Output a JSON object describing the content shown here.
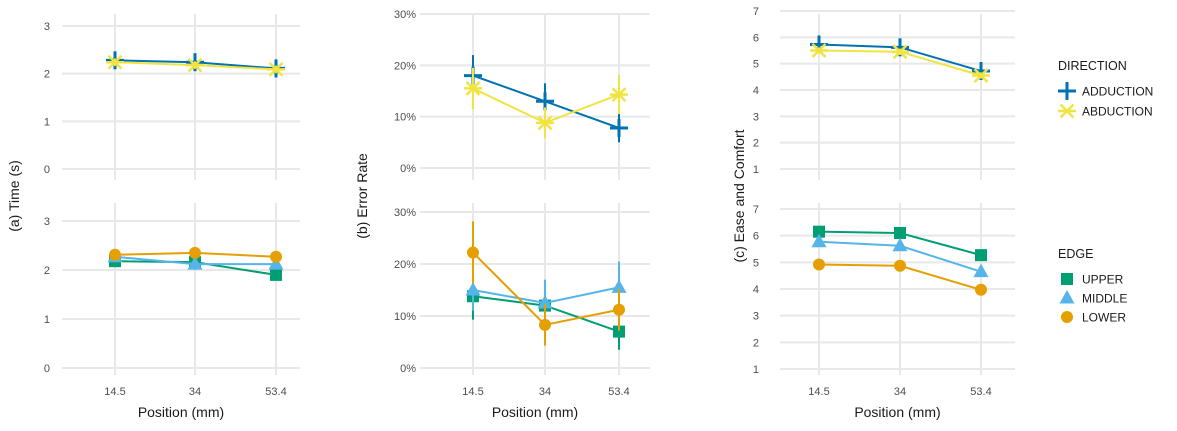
{
  "colors": {
    "adduction": "#0072B2",
    "abduction": "#F0E442",
    "upper": "#009E73",
    "middle": "#56B4E9",
    "lower": "#E69F00",
    "grid": "#e8e8e8"
  },
  "legends": [
    {
      "title": "DIRECTION",
      "entries": [
        {
          "label": "ADDUCTION",
          "color": "#0072B2",
          "marker": "plus"
        },
        {
          "label": "ABDUCTION",
          "color": "#F0E442",
          "marker": "star"
        }
      ]
    },
    {
      "title": "EDGE",
      "entries": [
        {
          "label": "UPPER",
          "color": "#009E73",
          "marker": "square"
        },
        {
          "label": "MIDDLE",
          "color": "#56B4E9",
          "marker": "triangle"
        },
        {
          "label": "LOWER",
          "color": "#E69F00",
          "marker": "circle"
        }
      ]
    }
  ],
  "chart_data": [
    {
      "type": "line",
      "ylabel": "(a) Time (s)",
      "xlabel": "Position (mm)",
      "x": [
        "14.5",
        "34",
        "53.4"
      ],
      "panels": [
        {
          "facet": "DIRECTION",
          "ylim": [
            0,
            3.3
          ],
          "yticks": [
            0,
            1,
            2,
            3
          ],
          "ytick_labels": [
            "0",
            "1",
            "2",
            "3"
          ],
          "series": [
            {
              "name": "ADDUCTION",
              "marker": "plus",
              "color": "#0072B2",
              "values": [
                2.28,
                2.24,
                2.11
              ],
              "err": [
                0.12,
                0.12,
                0.1
              ]
            },
            {
              "name": "ABDUCTION",
              "marker": "star",
              "color": "#F0E442",
              "values": [
                2.24,
                2.18,
                2.09
              ],
              "err": [
                0.08,
                0.08,
                0.08
              ]
            }
          ]
        },
        {
          "facet": "EDGE",
          "ylim": [
            0,
            3.3
          ],
          "yticks": [
            0,
            1,
            2,
            3
          ],
          "ytick_labels": [
            "0",
            "1",
            "2",
            "3"
          ],
          "series": [
            {
              "name": "UPPER",
              "marker": "square",
              "color": "#009E73",
              "values": [
                2.18,
                2.16,
                1.9
              ],
              "err": [
                0.1,
                0.1,
                0.08
              ]
            },
            {
              "name": "MIDDLE",
              "marker": "triangle",
              "color": "#56B4E9",
              "values": [
                2.27,
                2.12,
                2.12
              ],
              "err": [
                0.1,
                0.12,
                0.1
              ]
            },
            {
              "name": "LOWER",
              "marker": "circle",
              "color": "#E69F00",
              "values": [
                2.31,
                2.35,
                2.27
              ],
              "err": [
                0.1,
                0.1,
                0.08
              ]
            }
          ]
        }
      ]
    },
    {
      "type": "line",
      "ylabel": "(b) Error Rate",
      "xlabel": "Position (mm)",
      "x": [
        "14.5",
        "34",
        "53.4"
      ],
      "panels": [
        {
          "facet": "DIRECTION",
          "ylim": [
            0,
            0.31
          ],
          "yticks": [
            0,
            0.1,
            0.2,
            0.3
          ],
          "ytick_labels": [
            "0%",
            "10%",
            "20%",
            "30%"
          ],
          "series": [
            {
              "name": "ADDUCTION",
              "marker": "plus",
              "color": "#0072B2",
              "values": [
                0.18,
                0.13,
                0.078
              ],
              "err": [
                0.04,
                0.035,
                0.028
              ]
            },
            {
              "name": "ABDUCTION",
              "marker": "star",
              "color": "#F0E442",
              "values": [
                0.155,
                0.088,
                0.143
              ],
              "err": [
                0.04,
                0.03,
                0.038
              ]
            }
          ]
        },
        {
          "facet": "EDGE",
          "ylim": [
            0,
            0.31
          ],
          "yticks": [
            0,
            0.1,
            0.2,
            0.3
          ],
          "ytick_labels": [
            "0%",
            "10%",
            "20%",
            "30%"
          ],
          "series": [
            {
              "name": "UPPER",
              "marker": "square",
              "color": "#009E73",
              "values": [
                0.138,
                0.12,
                0.07
              ],
              "err": [
                0.045,
                0.042,
                0.035
              ]
            },
            {
              "name": "MIDDLE",
              "marker": "triangle",
              "color": "#56B4E9",
              "values": [
                0.15,
                0.125,
                0.155
              ],
              "err": [
                0.04,
                0.045,
                0.05
              ]
            },
            {
              "name": "LOWER",
              "marker": "circle",
              "color": "#E69F00",
              "values": [
                0.222,
                0.083,
                0.112
              ],
              "err": [
                0.06,
                0.04,
                0.04
              ]
            }
          ]
        }
      ]
    },
    {
      "type": "line",
      "ylabel": "(c) Ease and Comfort",
      "xlabel": "Position (mm)",
      "x": [
        "14.5",
        "34",
        "53.4"
      ],
      "panels": [
        {
          "facet": "DIRECTION",
          "ylim": [
            0.8,
            7.2
          ],
          "yticks": [
            1,
            2,
            3,
            4,
            5,
            6,
            7
          ],
          "ytick_labels": [
            "1",
            "2",
            "3",
            "4",
            "5",
            "6",
            "7"
          ],
          "series": [
            {
              "name": "ADDUCTION",
              "marker": "plus",
              "color": "#0072B2",
              "values": [
                5.73,
                5.62,
                4.72
              ],
              "err": [
                0.25,
                0.25,
                0.25
              ]
            },
            {
              "name": "ABDUCTION",
              "marker": "star",
              "color": "#F0E442",
              "values": [
                5.5,
                5.45,
                4.55
              ],
              "err": [
                0.12,
                0.12,
                0.12
              ]
            }
          ]
        },
        {
          "facet": "EDGE",
          "ylim": [
            0.8,
            7.2
          ],
          "yticks": [
            1,
            2,
            3,
            4,
            5,
            6,
            7
          ],
          "ytick_labels": [
            "1",
            "2",
            "3",
            "4",
            "5",
            "6",
            "7"
          ],
          "series": [
            {
              "name": "UPPER",
              "marker": "square",
              "color": "#009E73",
              "values": [
                6.15,
                6.1,
                5.27
              ],
              "err": [
                0.0,
                0.0,
                0.0
              ]
            },
            {
              "name": "MIDDLE",
              "marker": "triangle",
              "color": "#56B4E9",
              "values": [
                5.77,
                5.62,
                4.65
              ],
              "err": [
                0.0,
                0.0,
                0.0
              ]
            },
            {
              "name": "LOWER",
              "marker": "circle",
              "color": "#E69F00",
              "values": [
                4.92,
                4.87,
                3.97
              ],
              "err": [
                0.0,
                0.0,
                0.0
              ]
            }
          ]
        }
      ]
    }
  ]
}
